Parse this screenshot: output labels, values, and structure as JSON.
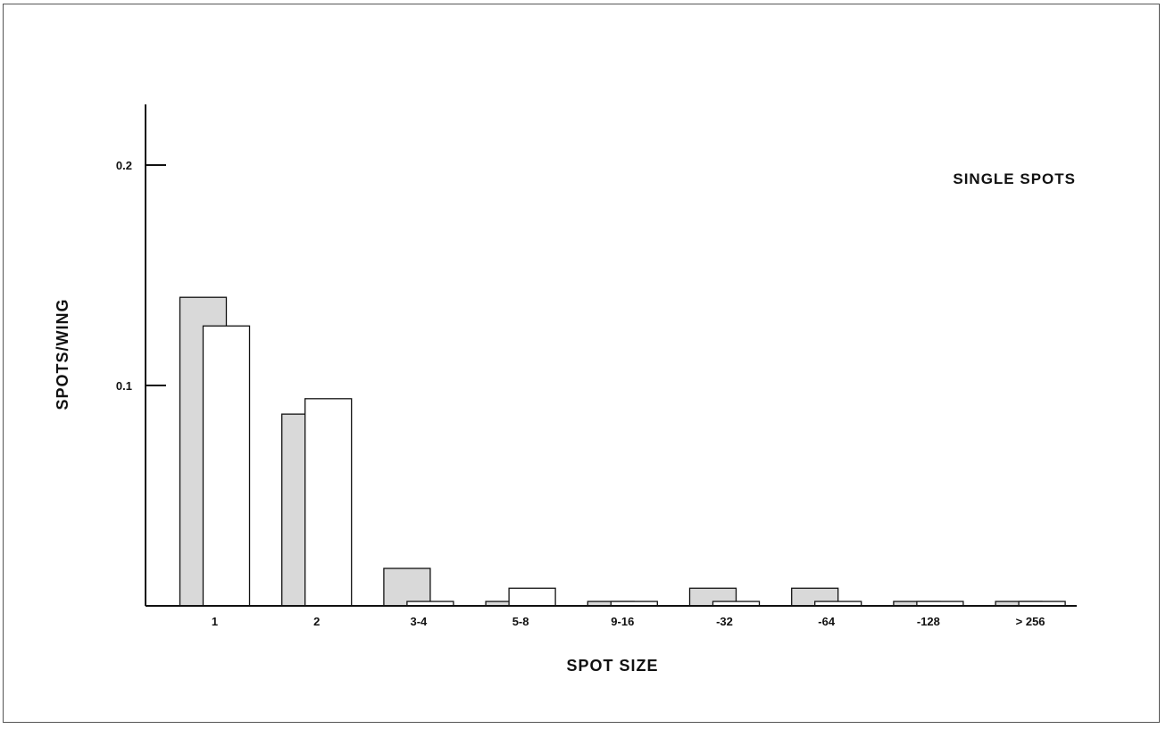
{
  "chart_data": {
    "type": "bar",
    "title": "",
    "annotation": "SINGLE SPOTS",
    "xlabel": "SPOT SIZE",
    "ylabel": "SPOTS/WING",
    "categories": [
      "1",
      "2",
      "3-4",
      "5-8",
      "9-16",
      "-32",
      "-64",
      "-128",
      "> 256"
    ],
    "ylim": [
      0,
      0.22
    ],
    "yticks": [
      0.1,
      0.2
    ],
    "ytick_labels": [
      "0.1",
      "0.2"
    ],
    "grid": false,
    "legend": "none",
    "series": [
      {
        "color": "#d9d9d9",
        "values": [
          0.14,
          0.087,
          0.017,
          0.002,
          0.002,
          0.008,
          0.008,
          0.002,
          0.002
        ]
      },
      {
        "color": "#ffffff",
        "values": [
          0.127,
          0.094,
          0.002,
          0.008,
          0.002,
          0.002,
          0.002,
          0.002,
          0.002
        ]
      }
    ]
  }
}
